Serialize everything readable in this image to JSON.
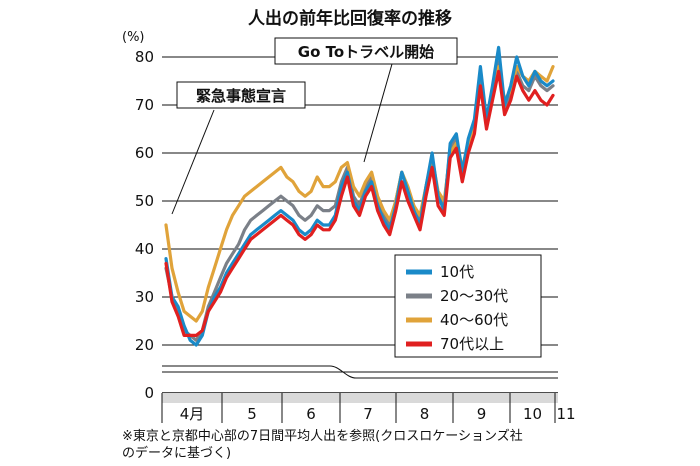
{
  "chart_data": {
    "type": "line",
    "title": "人出の前年比回復率の推移",
    "unit": "(%)",
    "ylim": [
      0,
      80
    ],
    "y_ticks": [
      "0",
      "20",
      "30",
      "40",
      "50",
      "60",
      "70",
      "80"
    ],
    "axis_break": "between 0 and 20",
    "grid": true,
    "x_ticks": [
      "4月",
      "5",
      "6",
      "7",
      "8",
      "9",
      "10",
      "11"
    ],
    "annotations": [
      "緊急事態宣言",
      "Go Toトラベル開始"
    ],
    "legend_position": "bottom-right",
    "note_lines": [
      "※東京と京都中心部の7日間平均人出を参照(クロスロケーションズ社",
      "のデータに基づく)"
    ],
    "series": [
      {
        "name": "10代",
        "color": "#1a8ac8",
        "values": [
          38,
          30,
          28,
          24,
          21,
          20,
          22,
          27,
          30,
          32,
          35,
          37,
          39,
          41,
          43,
          44,
          45,
          46,
          47,
          48,
          47,
          46,
          44,
          43,
          44,
          46,
          45,
          45,
          47,
          53,
          56,
          50,
          48,
          52,
          54,
          49,
          46,
          44,
          49,
          56,
          52,
          48,
          45,
          53,
          60,
          51,
          48,
          62,
          64,
          56,
          63,
          67,
          78,
          67,
          74,
          82,
          70,
          74,
          80,
          76,
          74,
          77,
          75,
          74,
          75
        ]
      },
      {
        "name": "20〜30代",
        "color": "#7b8088",
        "values": [
          36,
          30,
          27,
          23,
          22,
          21,
          23,
          28,
          31,
          34,
          37,
          39,
          41,
          44,
          46,
          47,
          48,
          49,
          50,
          51,
          50,
          49,
          47,
          46,
          47,
          49,
          48,
          48,
          49,
          54,
          57,
          51,
          49,
          53,
          55,
          50,
          47,
          45,
          50,
          56,
          52,
          49,
          46,
          53,
          59,
          51,
          49,
          61,
          63,
          56,
          62,
          66,
          76,
          66,
          72,
          79,
          69,
          72,
          77,
          74,
          73,
          76,
          74,
          73,
          74
        ]
      },
      {
        "name": "40〜60代",
        "color": "#e0a33a",
        "values": [
          45,
          36,
          31,
          27,
          26,
          25,
          27,
          32,
          36,
          40,
          44,
          47,
          49,
          51,
          52,
          53,
          54,
          55,
          56,
          57,
          55,
          54,
          52,
          51,
          52,
          55,
          53,
          53,
          54,
          57,
          58,
          53,
          51,
          54,
          56,
          51,
          48,
          46,
          50,
          56,
          53,
          49,
          47,
          53,
          59,
          52,
          50,
          60,
          62,
          57,
          62,
          65,
          74,
          67,
          72,
          78,
          71,
          73,
          78,
          76,
          75,
          77,
          76,
          75,
          78
        ]
      },
      {
        "name": "70代以上",
        "color": "#e02020",
        "values": [
          37,
          29,
          26,
          22,
          22,
          22,
          23,
          27,
          29,
          31,
          34,
          36,
          38,
          40,
          42,
          43,
          44,
          45,
          46,
          47,
          46,
          45,
          43,
          42,
          43,
          45,
          44,
          44,
          46,
          51,
          55,
          49,
          47,
          51,
          53,
          48,
          45,
          43,
          48,
          54,
          50,
          47,
          44,
          51,
          57,
          49,
          47,
          59,
          61,
          54,
          60,
          64,
          74,
          65,
          71,
          77,
          68,
          71,
          76,
          73,
          71,
          73,
          71,
          70,
          72
        ]
      }
    ]
  }
}
